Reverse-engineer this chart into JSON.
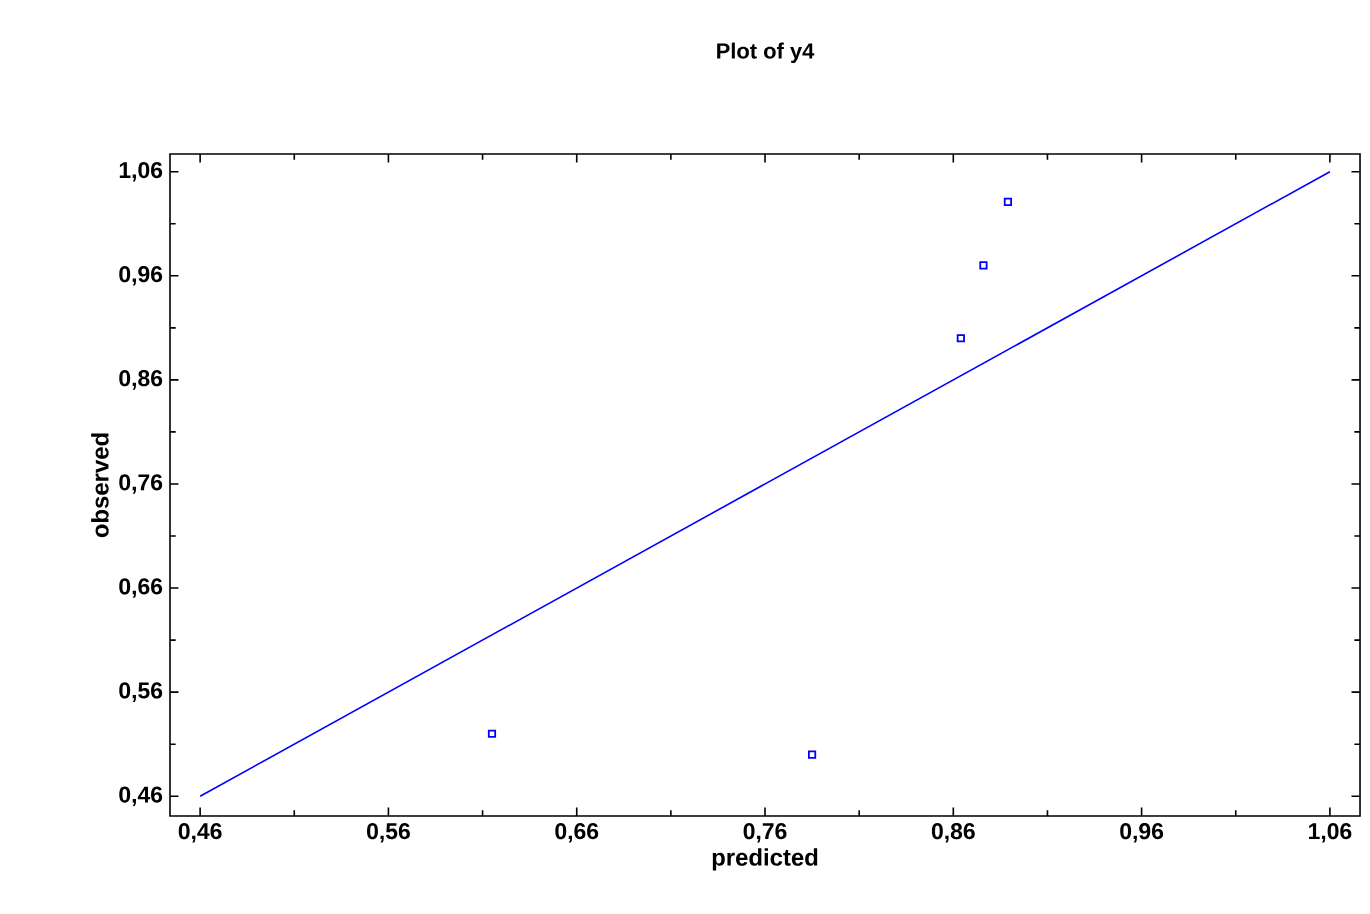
{
  "chart_data": {
    "type": "scatter",
    "title": "Plot of y4",
    "xlabel": "predicted",
    "ylabel": "observed",
    "xlim": [
      0.444,
      1.076
    ],
    "ylim": [
      0.441,
      1.077
    ],
    "xticks": [
      {
        "value": 0.46,
        "label": "0,46"
      },
      {
        "value": 0.56,
        "label": "0,56"
      },
      {
        "value": 0.66,
        "label": "0,66"
      },
      {
        "value": 0.76,
        "label": "0,76"
      },
      {
        "value": 0.86,
        "label": "0,86"
      },
      {
        "value": 0.96,
        "label": "0,96"
      },
      {
        "value": 1.06,
        "label": "1,06"
      }
    ],
    "yticks": [
      {
        "value": 0.46,
        "label": "0,46"
      },
      {
        "value": 0.56,
        "label": "0,56"
      },
      {
        "value": 0.66,
        "label": "0,66"
      },
      {
        "value": 0.76,
        "label": "0,76"
      },
      {
        "value": 0.86,
        "label": "0,86"
      },
      {
        "value": 0.96,
        "label": "0,96"
      },
      {
        "value": 1.06,
        "label": "1,06"
      }
    ],
    "grid": false,
    "series": [
      {
        "color": "#0000ff",
        "marker": "square",
        "x": [
          0.615,
          0.785,
          0.864,
          0.876,
          0.889
        ],
        "values": [
          0.52,
          0.5,
          0.9,
          0.97,
          1.031
        ]
      },
      {
        "type": "line",
        "color": "#0000ff",
        "marker": "none",
        "line_style": "solid",
        "x": [
          0.46,
          1.06
        ],
        "values": [
          0.46,
          1.06
        ]
      }
    ]
  }
}
